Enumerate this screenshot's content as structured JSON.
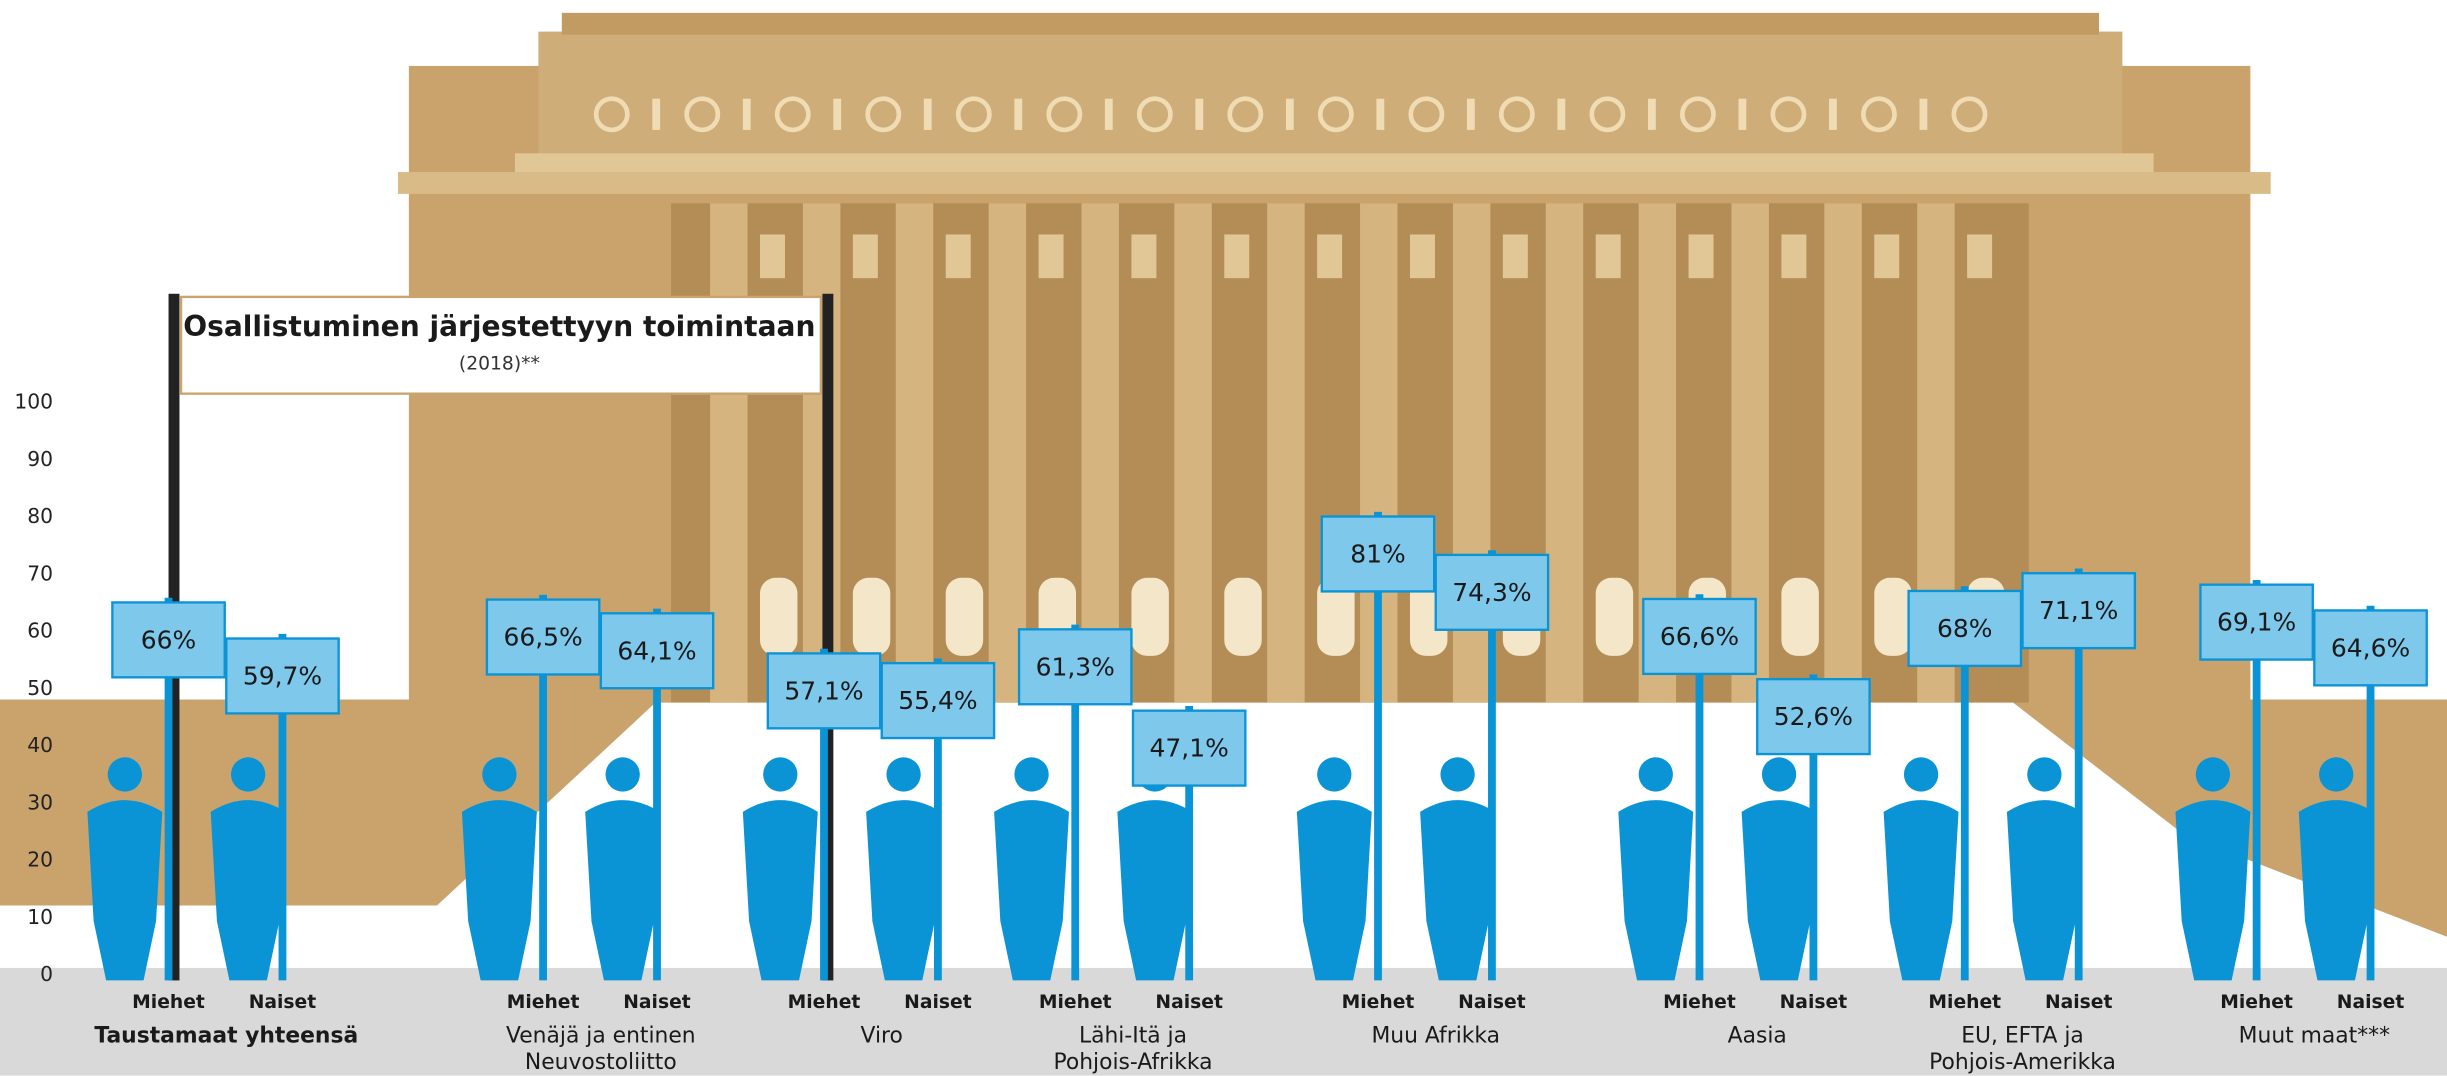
{
  "chart_data": {
    "type": "bar",
    "title": "Osallistuminen järjestettyyn toimintaan",
    "subtitle": "(2018)**",
    "categories": [
      [
        "Taustamaat yhteensä"
      ],
      [
        "Venäjä ja entinen",
        "Neuvostoliitto"
      ],
      [
        "Viro"
      ],
      [
        "Lähi-Itä  ja",
        "Pohjois-Afrikka"
      ],
      [
        "Muu Afrikka"
      ],
      [
        "Aasia"
      ],
      [
        "EU, EFTA ja",
        "Pohjois-Amerikka"
      ],
      [
        "Muut maat***"
      ]
    ],
    "series": [
      {
        "name": "Miehet",
        "color": "#0a94d6",
        "values": [
          66,
          66.5,
          57.1,
          61.3,
          81,
          66.6,
          68,
          69.1
        ],
        "value_labels": [
          "66%",
          "66,5%",
          "57,1%",
          "61,3%",
          "81%",
          "66,6%",
          "68%",
          "69,1%"
        ]
      },
      {
        "name": "Naiset",
        "color": "#0a94d6",
        "values": [
          59.7,
          64.1,
          55.4,
          47.1,
          74.3,
          52.6,
          71.1,
          64.6
        ],
        "value_labels": [
          "59,7%",
          "64,1%",
          "55,4%",
          "47,1%",
          "74,3%",
          "52,6%",
          "71,1%",
          "64,6%"
        ]
      }
    ],
    "ylim": [
      0,
      100
    ],
    "yticks": [
      0,
      10,
      20,
      30,
      40,
      50,
      60,
      70,
      80,
      90,
      100
    ],
    "sign_color": "#7ec8ec"
  }
}
